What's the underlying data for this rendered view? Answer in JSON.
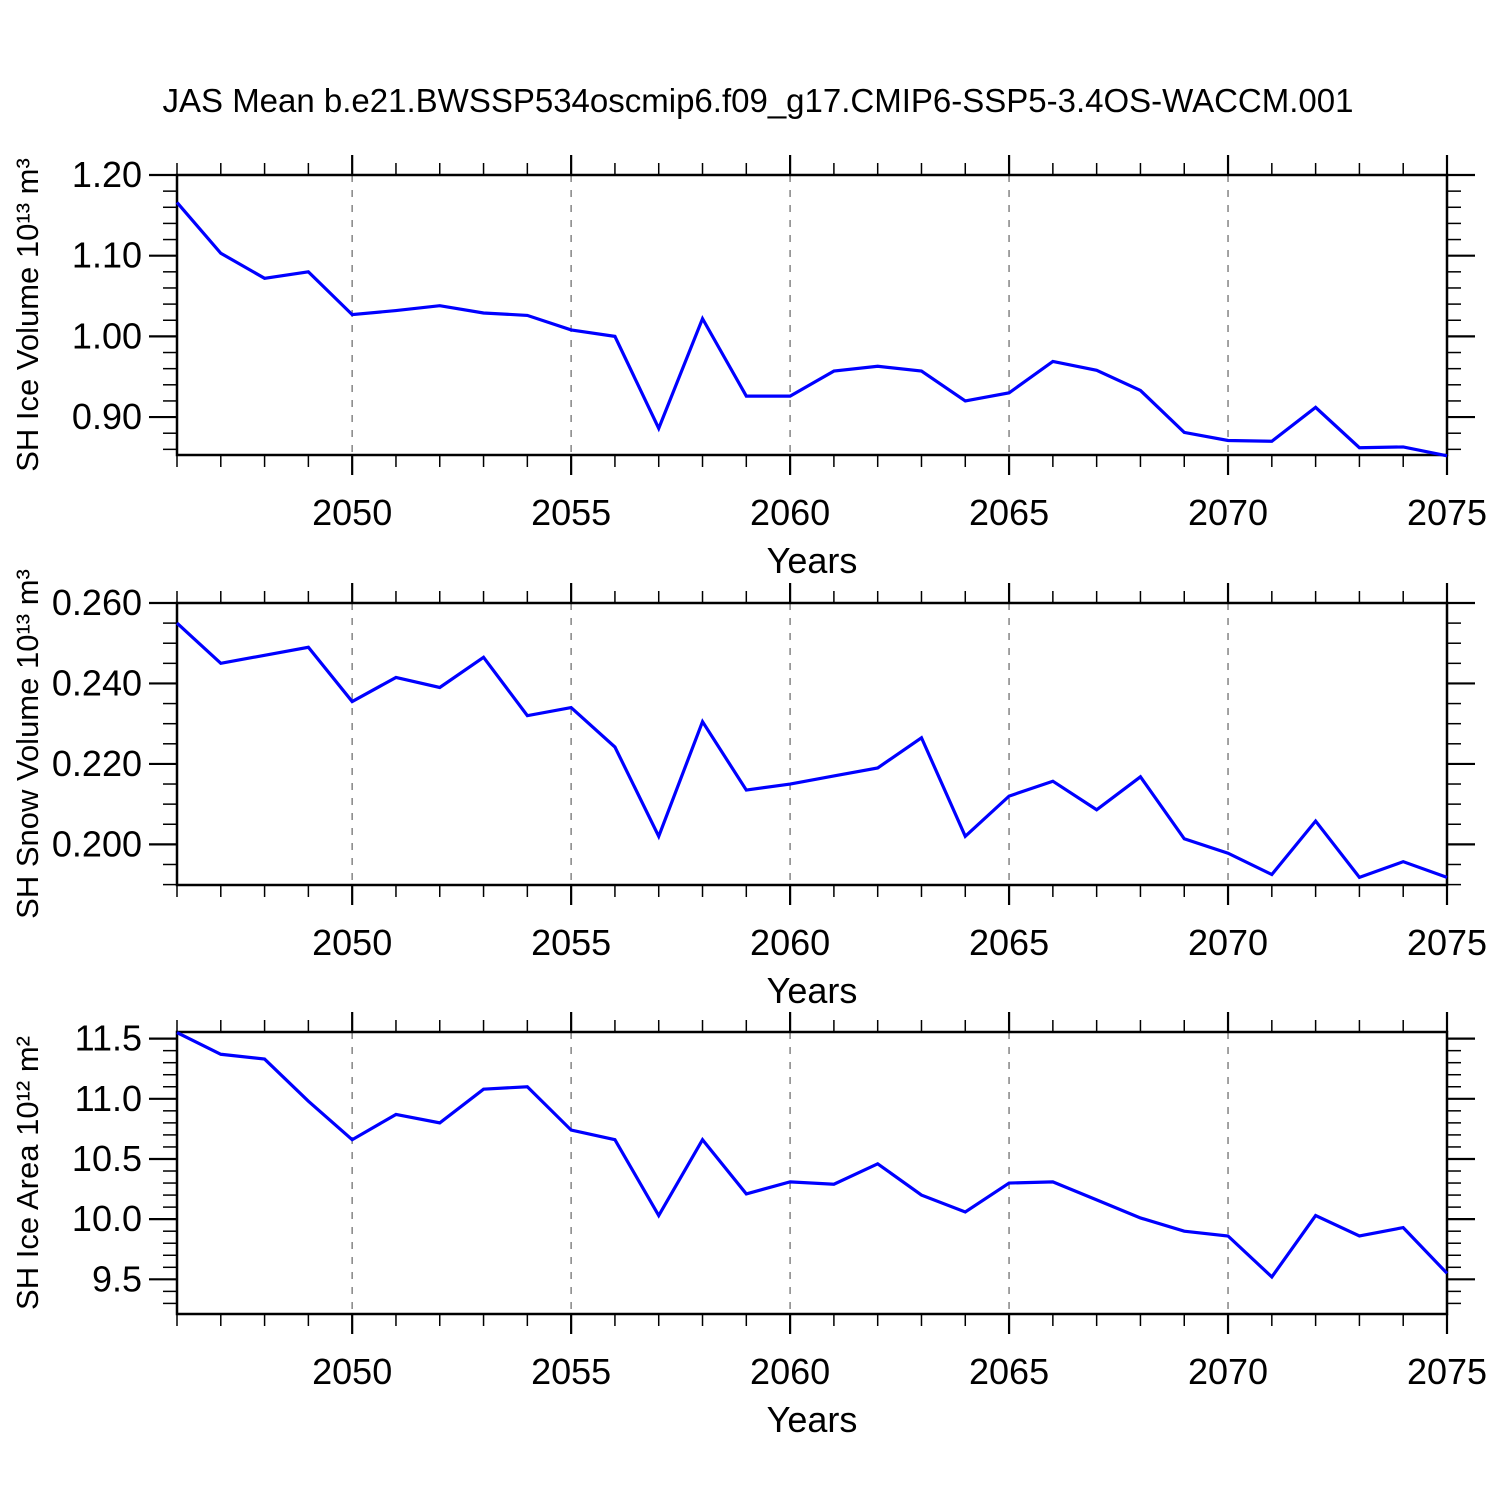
{
  "title": "JAS Mean b.e21.BWSSP534oscmip6.f09_g17.CMIP6-SSP5-3.4OS-WACCM.001",
  "colors": {
    "line": "#0000ff",
    "grid": "#8c8c8c",
    "axis": "#000000",
    "text": "#000000"
  },
  "x_range": [
    2046,
    2075
  ],
  "chart_data": [
    {
      "id": "ice-volume",
      "type": "line",
      "ylabel": "SH Ice Volume 10¹³ m³",
      "xlabel": "Years",
      "x": [
        2046,
        2047,
        2048,
        2049,
        2050,
        2051,
        2052,
        2053,
        2054,
        2055,
        2056,
        2057,
        2058,
        2059,
        2060,
        2061,
        2062,
        2063,
        2064,
        2065,
        2066,
        2067,
        2068,
        2069,
        2070,
        2071,
        2072,
        2073,
        2074,
        2075
      ],
      "values": [
        1.166,
        1.103,
        1.072,
        1.08,
        1.027,
        1.032,
        1.038,
        1.029,
        1.026,
        1.008,
        1.0,
        0.886,
        1.022,
        0.926,
        0.926,
        0.957,
        0.963,
        0.957,
        0.92,
        0.93,
        0.969,
        0.958,
        0.933,
        0.881,
        0.871,
        0.87,
        0.912,
        0.862,
        0.863,
        0.852
      ],
      "ylim": [
        0.853,
        1.2
      ],
      "ytick_values": [
        0.9,
        1.0,
        1.1,
        1.2
      ],
      "ytick_labels": [
        "0.90",
        "1.00",
        "1.10",
        "1.20"
      ],
      "y_minor_step": 0.02,
      "xtick_values": [
        2050,
        2055,
        2060,
        2065,
        2070,
        2075
      ],
      "grid": true
    },
    {
      "id": "snow-volume",
      "type": "line",
      "ylabel": "SH Snow Volume 10¹³ m³",
      "xlabel": "Years",
      "x": [
        2046,
        2047,
        2048,
        2049,
        2050,
        2051,
        2052,
        2053,
        2054,
        2055,
        2056,
        2057,
        2058,
        2059,
        2060,
        2061,
        2062,
        2063,
        2064,
        2065,
        2066,
        2067,
        2068,
        2069,
        2070,
        2071,
        2072,
        2073,
        2074,
        2075
      ],
      "values": [
        0.255,
        0.245,
        0.247,
        0.249,
        0.2355,
        0.2415,
        0.239,
        0.2465,
        0.232,
        0.234,
        0.2242,
        0.202,
        0.2305,
        0.2135,
        0.215,
        0.217,
        0.219,
        0.2265,
        0.202,
        0.212,
        0.2157,
        0.2086,
        0.2168,
        0.2014,
        0.1978,
        0.1925,
        0.2058,
        0.1918,
        0.1957,
        0.1918
      ],
      "ylim": [
        0.1899,
        0.26
      ],
      "ytick_values": [
        0.2,
        0.22,
        0.24,
        0.26
      ],
      "ytick_labels": [
        "0.200",
        "0.220",
        "0.240",
        "0.260"
      ],
      "y_minor_step": 0.005,
      "xtick_values": [
        2050,
        2055,
        2060,
        2065,
        2070,
        2075
      ],
      "grid": true
    },
    {
      "id": "ice-area",
      "type": "line",
      "ylabel": "SH Ice Area 10¹² m²",
      "xlabel": "Years",
      "x": [
        2046,
        2047,
        2048,
        2049,
        2050,
        2051,
        2052,
        2053,
        2054,
        2055,
        2056,
        2057,
        2058,
        2059,
        2060,
        2061,
        2062,
        2063,
        2064,
        2065,
        2066,
        2067,
        2068,
        2069,
        2070,
        2071,
        2072,
        2073,
        2074,
        2075
      ],
      "values": [
        11.55,
        11.37,
        11.33,
        10.98,
        10.66,
        10.87,
        10.8,
        11.08,
        11.1,
        10.74,
        10.66,
        10.03,
        10.66,
        10.21,
        10.31,
        10.29,
        10.46,
        10.2,
        10.06,
        10.3,
        10.31,
        10.16,
        10.01,
        9.9,
        9.86,
        9.52,
        10.03,
        9.86,
        9.93,
        9.55
      ],
      "ylim": [
        9.212,
        11.555
      ],
      "ytick_values": [
        9.5,
        10.0,
        10.5,
        11.0,
        11.5
      ],
      "ytick_labels": [
        "9.5",
        "10.0",
        "10.5",
        "11.0",
        "11.5"
      ],
      "y_minor_step": 0.1,
      "xtick_values": [
        2050,
        2055,
        2060,
        2065,
        2070,
        2075
      ],
      "grid": true
    }
  ]
}
